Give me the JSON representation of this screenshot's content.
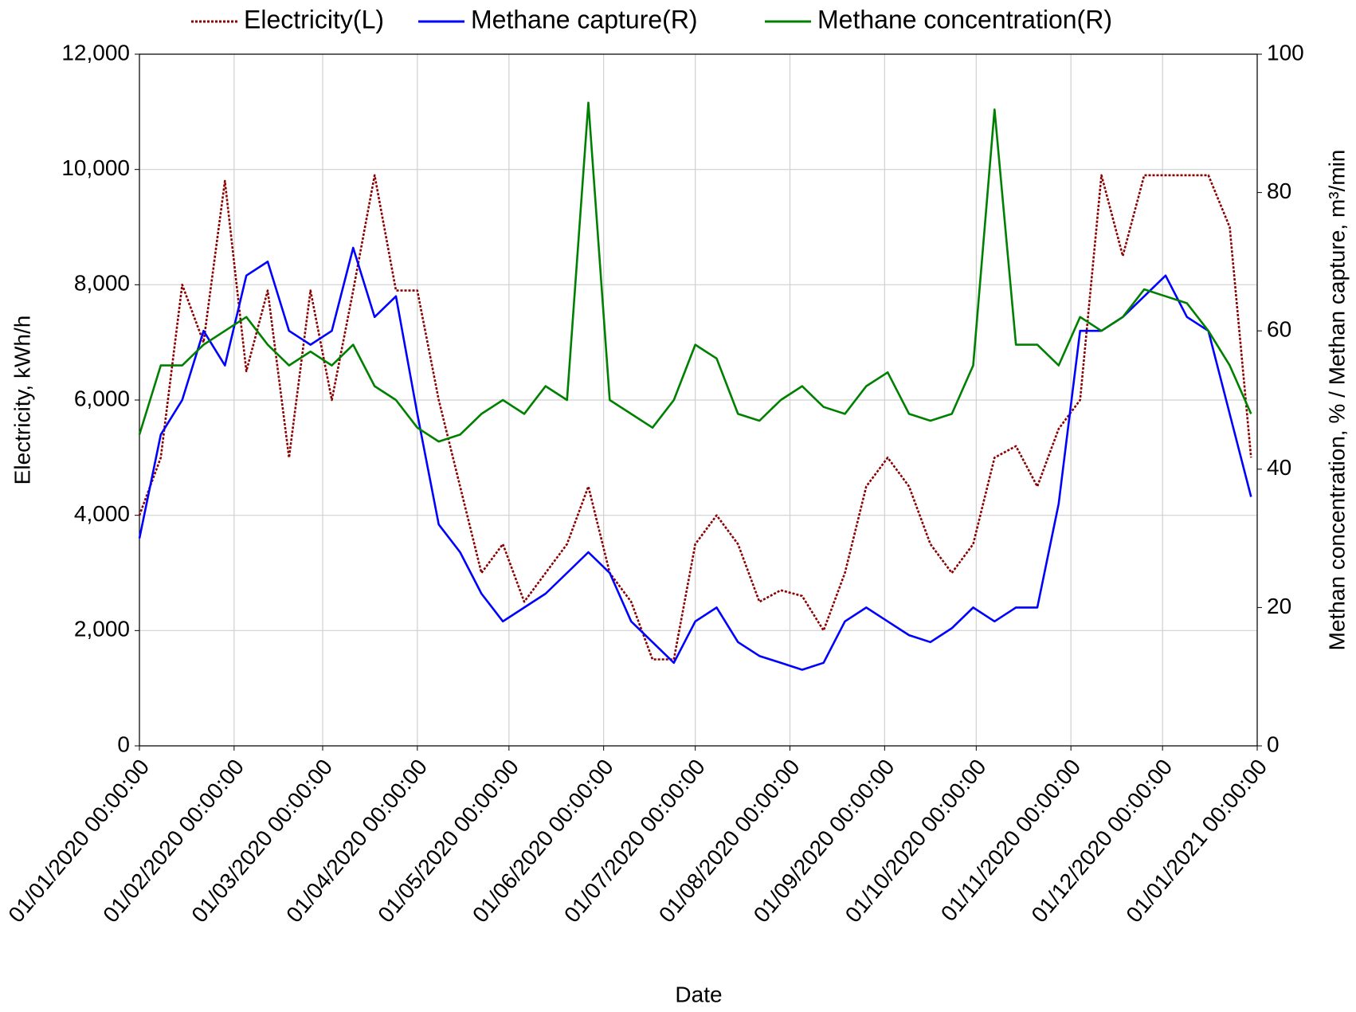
{
  "chart_data": {
    "type": "line",
    "xlabel": "Date",
    "ylabel": "Electricity, kWh/h",
    "y2label": "Methan concentration, % / Methan capture, m³/min",
    "legend": "top",
    "grid": true,
    "x": [
      "2020-01-01",
      "2020-01-08",
      "2020-01-15",
      "2020-01-22",
      "2020-01-29",
      "2020-02-05",
      "2020-02-12",
      "2020-02-19",
      "2020-02-26",
      "2020-03-04",
      "2020-03-11",
      "2020-03-18",
      "2020-03-25",
      "2020-04-01",
      "2020-04-08",
      "2020-04-15",
      "2020-04-22",
      "2020-04-29",
      "2020-05-06",
      "2020-05-13",
      "2020-05-20",
      "2020-05-27",
      "2020-06-03",
      "2020-06-10",
      "2020-06-17",
      "2020-06-24",
      "2020-07-01",
      "2020-07-08",
      "2020-07-15",
      "2020-07-22",
      "2020-07-29",
      "2020-08-05",
      "2020-08-12",
      "2020-08-19",
      "2020-08-26",
      "2020-09-02",
      "2020-09-09",
      "2020-09-16",
      "2020-09-23",
      "2020-09-30",
      "2020-10-07",
      "2020-10-14",
      "2020-10-21",
      "2020-10-28",
      "2020-11-04",
      "2020-11-11",
      "2020-11-18",
      "2020-11-25",
      "2020-12-02",
      "2020-12-09",
      "2020-12-16",
      "2020-12-23",
      "2020-12-30"
    ],
    "xlim": [
      "2020-01-01",
      "2021-01-01"
    ],
    "xticks": [
      {
        "value": "2020-01-01",
        "label": "01/01/2020 00:00:00"
      },
      {
        "value": "2020-02-01",
        "label": "01/02/2020 00:00:00"
      },
      {
        "value": "2020-03-01",
        "label": "01/03/2020 00:00:00"
      },
      {
        "value": "2020-04-01",
        "label": "01/04/2020 00:00:00"
      },
      {
        "value": "2020-05-01",
        "label": "01/05/2020 00:00:00"
      },
      {
        "value": "2020-06-01",
        "label": "01/06/2020 00:00:00"
      },
      {
        "value": "2020-07-01",
        "label": "01/07/2020 00:00:00"
      },
      {
        "value": "2020-08-01",
        "label": "01/08/2020 00:00:00"
      },
      {
        "value": "2020-09-01",
        "label": "01/09/2020 00:00:00"
      },
      {
        "value": "2020-10-01",
        "label": "01/10/2020 00:00:00"
      },
      {
        "value": "2020-11-01",
        "label": "01/11/2020 00:00:00"
      },
      {
        "value": "2020-12-01",
        "label": "01/12/2020 00:00:00"
      },
      {
        "value": "2021-01-01",
        "label": "01/01/2021 00:00:00"
      }
    ],
    "ylim": [
      0,
      12000
    ],
    "yticks": [
      0,
      {
        "value": 2000,
        "label": "2,000"
      },
      {
        "value": 4000,
        "label": "4,000"
      },
      {
        "value": 6000,
        "label": "6,000"
      },
      {
        "value": 8000,
        "label": "8,000"
      },
      {
        "value": 10000,
        "label": "10,000"
      },
      {
        "value": 12000,
        "label": "12,000"
      }
    ],
    "y2lim": [
      0,
      100
    ],
    "y2ticks": [
      0,
      20,
      40,
      60,
      80,
      100
    ],
    "series": [
      {
        "name": "Electricity(L)",
        "color": "#8b0000",
        "style": "dotted",
        "values": [
          4000,
          5000,
          8000,
          7000,
          9800,
          6500,
          7900,
          5000,
          7900,
          6000,
          7900,
          9900,
          7900,
          7900,
          6000,
          4500,
          3000,
          3500,
          2500,
          3000,
          3500,
          4500,
          3000,
          2500,
          1500,
          1500,
          3500,
          4000,
          3500,
          2500,
          2700,
          2600,
          2000,
          3000,
          4500,
          5000,
          4500,
          3500,
          3000,
          3500,
          5000,
          5200,
          4500,
          5500,
          6000,
          9900,
          8500,
          9900,
          9900,
          9900,
          9900,
          9000,
          5000
        ]
      },
      {
        "name": "Methane capture(R)",
        "color": "#0000ff",
        "axis": "y2",
        "values": [
          30,
          45,
          50,
          60,
          55,
          68,
          70,
          60,
          58,
          60,
          72,
          62,
          65,
          48,
          32,
          28,
          22,
          18,
          20,
          22,
          25,
          28,
          25,
          18,
          15,
          12,
          18,
          20,
          15,
          13,
          12,
          11,
          12,
          18,
          20,
          18,
          16,
          15,
          17,
          20,
          18,
          20,
          20,
          35,
          60,
          60,
          62,
          65,
          68,
          62,
          60,
          48,
          36
        ]
      },
      {
        "name": "Methane concentration(R)",
        "color": "#008000",
        "axis": "y2",
        "values": [
          45,
          55,
          55,
          58,
          60,
          62,
          58,
          55,
          57,
          55,
          58,
          52,
          50,
          46,
          44,
          45,
          48,
          50,
          48,
          52,
          50,
          93,
          50,
          48,
          46,
          50,
          58,
          56,
          48,
          47,
          50,
          52,
          49,
          48,
          52,
          54,
          48,
          47,
          48,
          55,
          92,
          58,
          58,
          55,
          62,
          60,
          62,
          66,
          65,
          64,
          60,
          55,
          48
        ]
      }
    ]
  }
}
